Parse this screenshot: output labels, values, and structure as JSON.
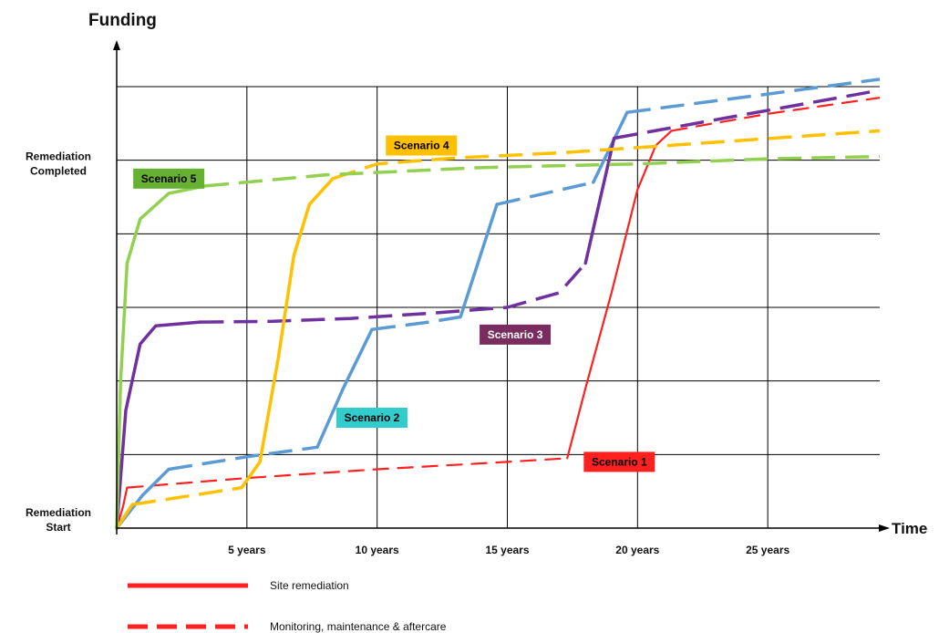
{
  "chart_data": {
    "type": "line",
    "title": "",
    "xlabel": "Time",
    "ylabel": "Funding",
    "xlim": [
      0,
      29.3
    ],
    "ylim": [
      0,
      6
    ],
    "x_ticks": [
      {
        "value": 5,
        "label": "5 years"
      },
      {
        "value": 10,
        "label": "10 years"
      },
      {
        "value": 15,
        "label": "15 years"
      },
      {
        "value": 20,
        "label": "20 years"
      },
      {
        "value": 25,
        "label": "25 years"
      }
    ],
    "y_labels": [
      {
        "value": 0,
        "lines": [
          "Remediation",
          "Start"
        ]
      },
      {
        "value": 5,
        "lines": [
          "Remediation",
          "Completed"
        ]
      }
    ],
    "grid": true,
    "series": [
      {
        "name": "Scenario 1",
        "color": "#ff2020",
        "label": {
          "text": "Scenario 1",
          "x": 19.3,
          "y": 0.9,
          "bg": "#ff2020",
          "fg": "#000000"
        },
        "segments": [
          {
            "style": "solid",
            "points": [
              [
                0,
                0
              ],
              [
                0.25,
                0.3
              ],
              [
                0.4,
                0.55
              ]
            ]
          },
          {
            "style": "dashed",
            "points": [
              [
                0.4,
                0.55
              ],
              [
                5,
                0.68
              ],
              [
                10,
                0.8
              ],
              [
                15,
                0.9
              ],
              [
                17.3,
                0.95
              ]
            ]
          },
          {
            "style": "solid",
            "points": [
              [
                17.3,
                0.95
              ],
              [
                18,
                1.9
              ],
              [
                19,
                3.2
              ],
              [
                20,
                4.6
              ],
              [
                20.7,
                5.2
              ],
              [
                21.3,
                5.4
              ]
            ]
          },
          {
            "style": "dashed",
            "points": [
              [
                21.3,
                5.4
              ],
              [
                25,
                5.63
              ],
              [
                29.3,
                5.85
              ]
            ]
          }
        ]
      },
      {
        "name": "Scenario 2",
        "color": "#5b9bd5",
        "label": {
          "text": "Scenario 2",
          "x": 9.8,
          "y": 1.5,
          "bg": "#33cccc",
          "fg": "#000000"
        },
        "segments": [
          {
            "style": "solid",
            "points": [
              [
                0,
                0
              ],
              [
                1,
                0.45
              ],
              [
                2,
                0.8
              ]
            ]
          },
          {
            "style": "dashed",
            "points": [
              [
                2,
                0.8
              ],
              [
                5,
                0.97
              ],
              [
                7.7,
                1.1
              ]
            ]
          },
          {
            "style": "solid",
            "points": [
              [
                7.7,
                1.1
              ],
              [
                8.7,
                1.9
              ],
              [
                9.8,
                2.7
              ]
            ]
          },
          {
            "style": "dashed",
            "points": [
              [
                9.8,
                2.7
              ],
              [
                12,
                2.8
              ],
              [
                13.2,
                2.87
              ]
            ]
          },
          {
            "style": "solid",
            "points": [
              [
                13.2,
                2.87
              ],
              [
                14.6,
                4.4
              ]
            ]
          },
          {
            "style": "dashed",
            "points": [
              [
                14.6,
                4.4
              ],
              [
                18.3,
                4.7
              ]
            ]
          },
          {
            "style": "solid",
            "points": [
              [
                18.3,
                4.7
              ],
              [
                19.6,
                5.65
              ]
            ]
          },
          {
            "style": "dashed",
            "points": [
              [
                19.6,
                5.65
              ],
              [
                25,
                5.9
              ],
              [
                29.3,
                6.1
              ]
            ]
          }
        ]
      },
      {
        "name": "Scenario 3",
        "color": "#7030a0",
        "label": {
          "text": "Scenario 3",
          "x": 15.3,
          "y": 2.63,
          "bg": "#7a2c5e",
          "fg": "#ffffff"
        },
        "segments": [
          {
            "style": "solid",
            "points": [
              [
                0,
                0
              ],
              [
                0.35,
                1.6
              ],
              [
                0.9,
                2.5
              ],
              [
                1.5,
                2.75
              ],
              [
                3.2,
                2.8
              ]
            ]
          },
          {
            "style": "dashed",
            "points": [
              [
                3.2,
                2.8
              ],
              [
                6,
                2.81
              ],
              [
                9,
                2.85
              ],
              [
                12,
                2.92
              ],
              [
                15,
                3.0
              ],
              [
                17,
                3.2
              ],
              [
                18,
                3.6
              ]
            ]
          },
          {
            "style": "solid",
            "points": [
              [
                18,
                3.6
              ],
              [
                19.1,
                5.3
              ]
            ]
          },
          {
            "style": "dashed",
            "points": [
              [
                19.1,
                5.3
              ],
              [
                23,
                5.55
              ],
              [
                29.3,
                5.95
              ]
            ]
          }
        ]
      },
      {
        "name": "Scenario 4",
        "color": "#ffc000",
        "label": {
          "text": "Scenario 4",
          "x": 11.7,
          "y": 5.2,
          "bg": "#ffc000",
          "fg": "#000000"
        },
        "segments": [
          {
            "style": "solid",
            "points": [
              [
                0,
                0
              ],
              [
                0.6,
                0.32
              ]
            ]
          },
          {
            "style": "dashed",
            "points": [
              [
                0.6,
                0.32
              ],
              [
                3,
                0.45
              ],
              [
                4.8,
                0.55
              ]
            ]
          },
          {
            "style": "solid",
            "points": [
              [
                4.8,
                0.55
              ],
              [
                5.5,
                0.9
              ],
              [
                6.2,
                2.3
              ],
              [
                6.8,
                3.7
              ],
              [
                7.4,
                4.4
              ],
              [
                8.3,
                4.75
              ]
            ]
          },
          {
            "style": "dashed",
            "points": [
              [
                8.3,
                4.75
              ],
              [
                10,
                4.95
              ],
              [
                13,
                5.03
              ],
              [
                17,
                5.1
              ],
              [
                22,
                5.22
              ],
              [
                29.3,
                5.4
              ]
            ]
          }
        ]
      },
      {
        "name": "Scenario 5",
        "color": "#92d050",
        "label": {
          "text": "Scenario 5",
          "x": 2.0,
          "y": 4.75,
          "bg": "#66b032",
          "fg": "#000000"
        },
        "segments": [
          {
            "style": "solid",
            "points": [
              [
                0,
                0
              ],
              [
                0.15,
                2.0
              ],
              [
                0.4,
                3.6
              ],
              [
                0.9,
                4.2
              ],
              [
                2,
                4.55
              ],
              [
                3.4,
                4.65
              ]
            ]
          },
          {
            "style": "dashed",
            "points": [
              [
                3.4,
                4.65
              ],
              [
                8,
                4.8
              ],
              [
                14,
                4.9
              ],
              [
                20,
                4.95
              ],
              [
                25,
                5.02
              ],
              [
                29.3,
                5.05
              ]
            ]
          }
        ]
      }
    ]
  },
  "legend": {
    "items": [
      {
        "style": "solid",
        "label": "Site remediation"
      },
      {
        "style": "dashed",
        "label": "Monitoring, maintenance & aftercare"
      }
    ],
    "color": "#ff2020"
  }
}
